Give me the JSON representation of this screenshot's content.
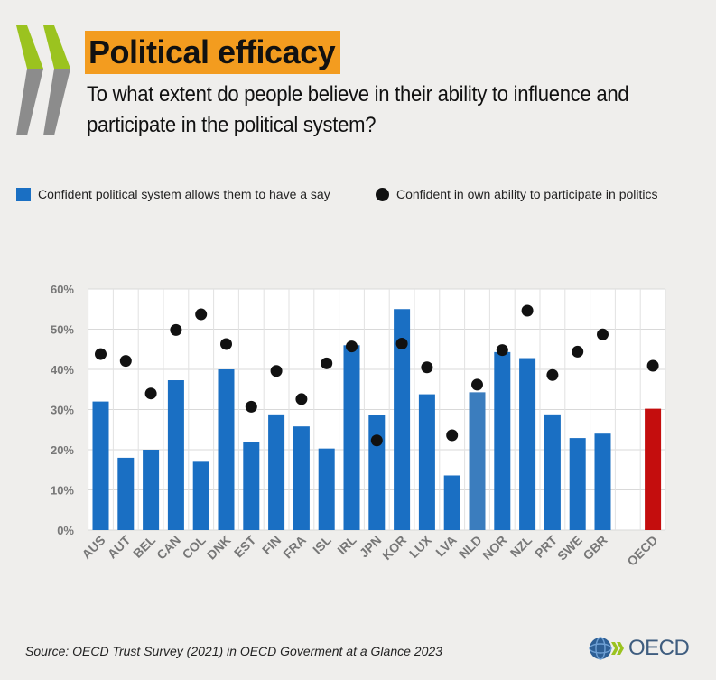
{
  "header": {
    "title": "Political efficacy",
    "subtitle": "To what extent do people believe in their ability to influence and participate in the political system?"
  },
  "legend": {
    "bars_label": "Confident political system allows them to have a say",
    "dots_label": "Confident in own ability to participate in politics"
  },
  "footer": {
    "source": "Source: OECD Trust Survey (2021) in OECD Goverment at a Glance 2023",
    "logo_text": "OECD"
  },
  "colors": {
    "bar": "#1a6fc3",
    "bar_highlight": "#3b7dbe",
    "bar_oecd": "#c40d0d",
    "dot": "#111111",
    "title_highlight": "#f39c1f",
    "chevron_green": "#9bc31f",
    "chevron_grey": "#8c8c8c"
  },
  "chart_data": {
    "type": "bar",
    "categories": [
      "AUS",
      "AUT",
      "BEL",
      "CAN",
      "COL",
      "DNK",
      "EST",
      "FIN",
      "FRA",
      "ISL",
      "IRL",
      "JPN",
      "KOR",
      "LUX",
      "LVA",
      "NLD",
      "NOR",
      "NZL",
      "PRT",
      "SWE",
      "GBR",
      "OECD"
    ],
    "series": [
      {
        "name": "Confident political system allows them to have a say",
        "kind": "bar",
        "values": [
          32,
          18,
          20,
          37.3,
          17,
          40,
          22,
          28.8,
          25.8,
          20.3,
          46,
          28.7,
          55,
          33.8,
          13.6,
          34.3,
          44.3,
          42.8,
          28.8,
          22.9,
          24,
          30.2
        ]
      },
      {
        "name": "Confident in own ability to participate in politics",
        "kind": "dot",
        "values": [
          43.8,
          42.1,
          34,
          49.8,
          53.7,
          46.3,
          30.7,
          39.6,
          32.6,
          41.5,
          45.7,
          22.3,
          46.4,
          40.5,
          23.6,
          36.2,
          44.8,
          54.6,
          38.6,
          44.4,
          48.7,
          40.9
        ]
      }
    ],
    "highlight": {
      "NLD": "bar_highlight",
      "OECD": "bar_oecd"
    },
    "gap_before": "OECD",
    "ylim": [
      0,
      60
    ],
    "yticks": [
      0,
      10,
      20,
      30,
      40,
      50,
      60
    ],
    "ytick_labels": [
      "0%",
      "10%",
      "20%",
      "30%",
      "40%",
      "50%",
      "60%"
    ],
    "grid": true,
    "legend_position": "top"
  }
}
